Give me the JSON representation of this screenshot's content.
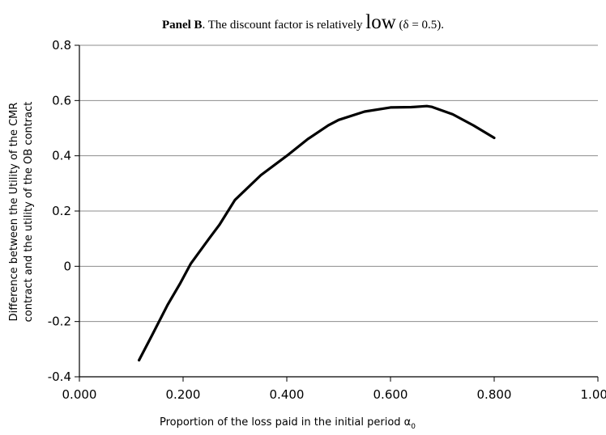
{
  "title": {
    "panel": "Panel B",
    "text_before": ". The discount factor is relatively ",
    "emphasis": "low",
    "text_after": " (δ = 0.5)."
  },
  "chart_data": {
    "type": "line",
    "xlabel": "Proportion of the loss paid in the initial period α",
    "xlabel_subscript": "0",
    "ylabel_line1": "Difference between the Utility of the CMR",
    "ylabel_line2": "contract and the utility of the OB contract",
    "xlim": [
      0,
      1
    ],
    "ylim": [
      -0.4,
      0.8
    ],
    "x_ticks": [
      "0.000",
      "0.200",
      "0.400",
      "0.600",
      "0.800",
      "1.000"
    ],
    "y_ticks": [
      "-0.4",
      "-0.2",
      "0",
      "0.2",
      "0.4",
      "0.6",
      "0.8"
    ],
    "grid": "horizontal",
    "legend": "none",
    "line_color": "#000000",
    "series": [
      {
        "x": [
          0.115,
          0.14,
          0.17,
          0.195,
          0.215,
          0.25,
          0.27,
          0.3,
          0.35,
          0.4,
          0.44,
          0.48,
          0.5,
          0.55,
          0.6,
          0.64,
          0.67,
          0.68,
          0.72,
          0.76,
          0.8
        ],
        "y": [
          -0.34,
          -0.25,
          -0.14,
          -0.06,
          0.01,
          0.1,
          0.15,
          0.24,
          0.33,
          0.4,
          0.46,
          0.51,
          0.53,
          0.56,
          0.575,
          0.576,
          0.58,
          0.577,
          0.55,
          0.51,
          0.465
        ]
      }
    ]
  }
}
